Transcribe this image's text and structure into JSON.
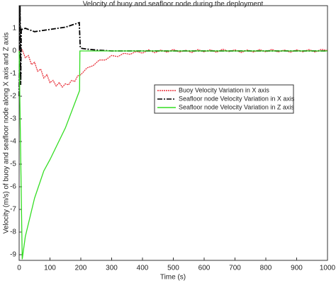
{
  "chart_data": {
    "type": "line",
    "title": "Velocity of buoy and seafloor node during the deployment",
    "xlabel": "Time (s)",
    "ylabel": "Velocity (m/s) of buoy and seafloor node along X axis and Z axis",
    "xlim": [
      0,
      1000
    ],
    "xticks": [
      0,
      100,
      200,
      300,
      400,
      500,
      600,
      700,
      800,
      900,
      1000
    ],
    "ylim": [
      -9.25,
      2
    ],
    "yticks": [
      1,
      0,
      -1,
      -2,
      -3,
      -4,
      -5,
      -6,
      -7,
      -8,
      -9
    ],
    "grid": false,
    "legend": "center right",
    "series": [
      {
        "name": "Buoy Velocity Variation in X axis",
        "color": "#e8303a",
        "dash": "2,1",
        "x": [
          0,
          10,
          20,
          30,
          40,
          50,
          60,
          70,
          80,
          90,
          100,
          110,
          120,
          130,
          140,
          150,
          160,
          170,
          180,
          190,
          200,
          220,
          240,
          260,
          280,
          300,
          320,
          340,
          360,
          380,
          400,
          420,
          440,
          460,
          480,
          500,
          520,
          540,
          560,
          580,
          600,
          620,
          640,
          660,
          680,
          700,
          720,
          740,
          760,
          780,
          800,
          820,
          840,
          860,
          880,
          900,
          920,
          940,
          960,
          980,
          1000
        ],
        "values": [
          0,
          0.05,
          -0.3,
          -0.2,
          -0.6,
          -0.5,
          -0.9,
          -0.8,
          -1.2,
          -1.05,
          -1.4,
          -1.3,
          -1.55,
          -1.4,
          -1.6,
          -1.45,
          -1.5,
          -1.3,
          -1.35,
          -1.1,
          -1.05,
          -0.75,
          -0.65,
          -0.4,
          -0.4,
          -0.2,
          -0.25,
          -0.1,
          -0.15,
          -0.02,
          -0.1,
          0.05,
          -0.08,
          0.04,
          -0.06,
          0.07,
          -0.05,
          0.03,
          -0.07,
          0.06,
          -0.04,
          0.05,
          -0.06,
          0.08,
          -0.03,
          0.05,
          -0.07,
          0.04,
          -0.05,
          0.06,
          -0.04,
          0.07,
          -0.05,
          0.04,
          -0.06,
          0.05,
          -0.04,
          0.06,
          -0.05,
          0.07,
          0.02
        ]
      },
      {
        "name": "Seafloor node Velocity Variation in X axis",
        "color": "#000000",
        "dash": "7,2,2,2",
        "x": [
          0,
          3,
          5,
          7,
          10,
          20,
          50,
          100,
          150,
          195,
          198,
          200,
          220,
          250,
          300,
          1000
        ],
        "values": [
          -2,
          2,
          -1.5,
          1,
          0.95,
          1,
          0.85,
          0.95,
          1.05,
          1.25,
          0.2,
          0.12,
          0.08,
          0.04,
          0,
          0
        ]
      },
      {
        "name": "Seafloor node Velocity Variation in Z axis",
        "color": "#33dd22",
        "dash": "",
        "x": [
          0,
          10,
          20,
          50,
          80,
          100,
          150,
          196,
          197,
          1000
        ],
        "values": [
          0,
          -9.2,
          -8.2,
          -6.5,
          -5.3,
          -4.8,
          -3.4,
          -1.75,
          0,
          0
        ]
      }
    ]
  }
}
